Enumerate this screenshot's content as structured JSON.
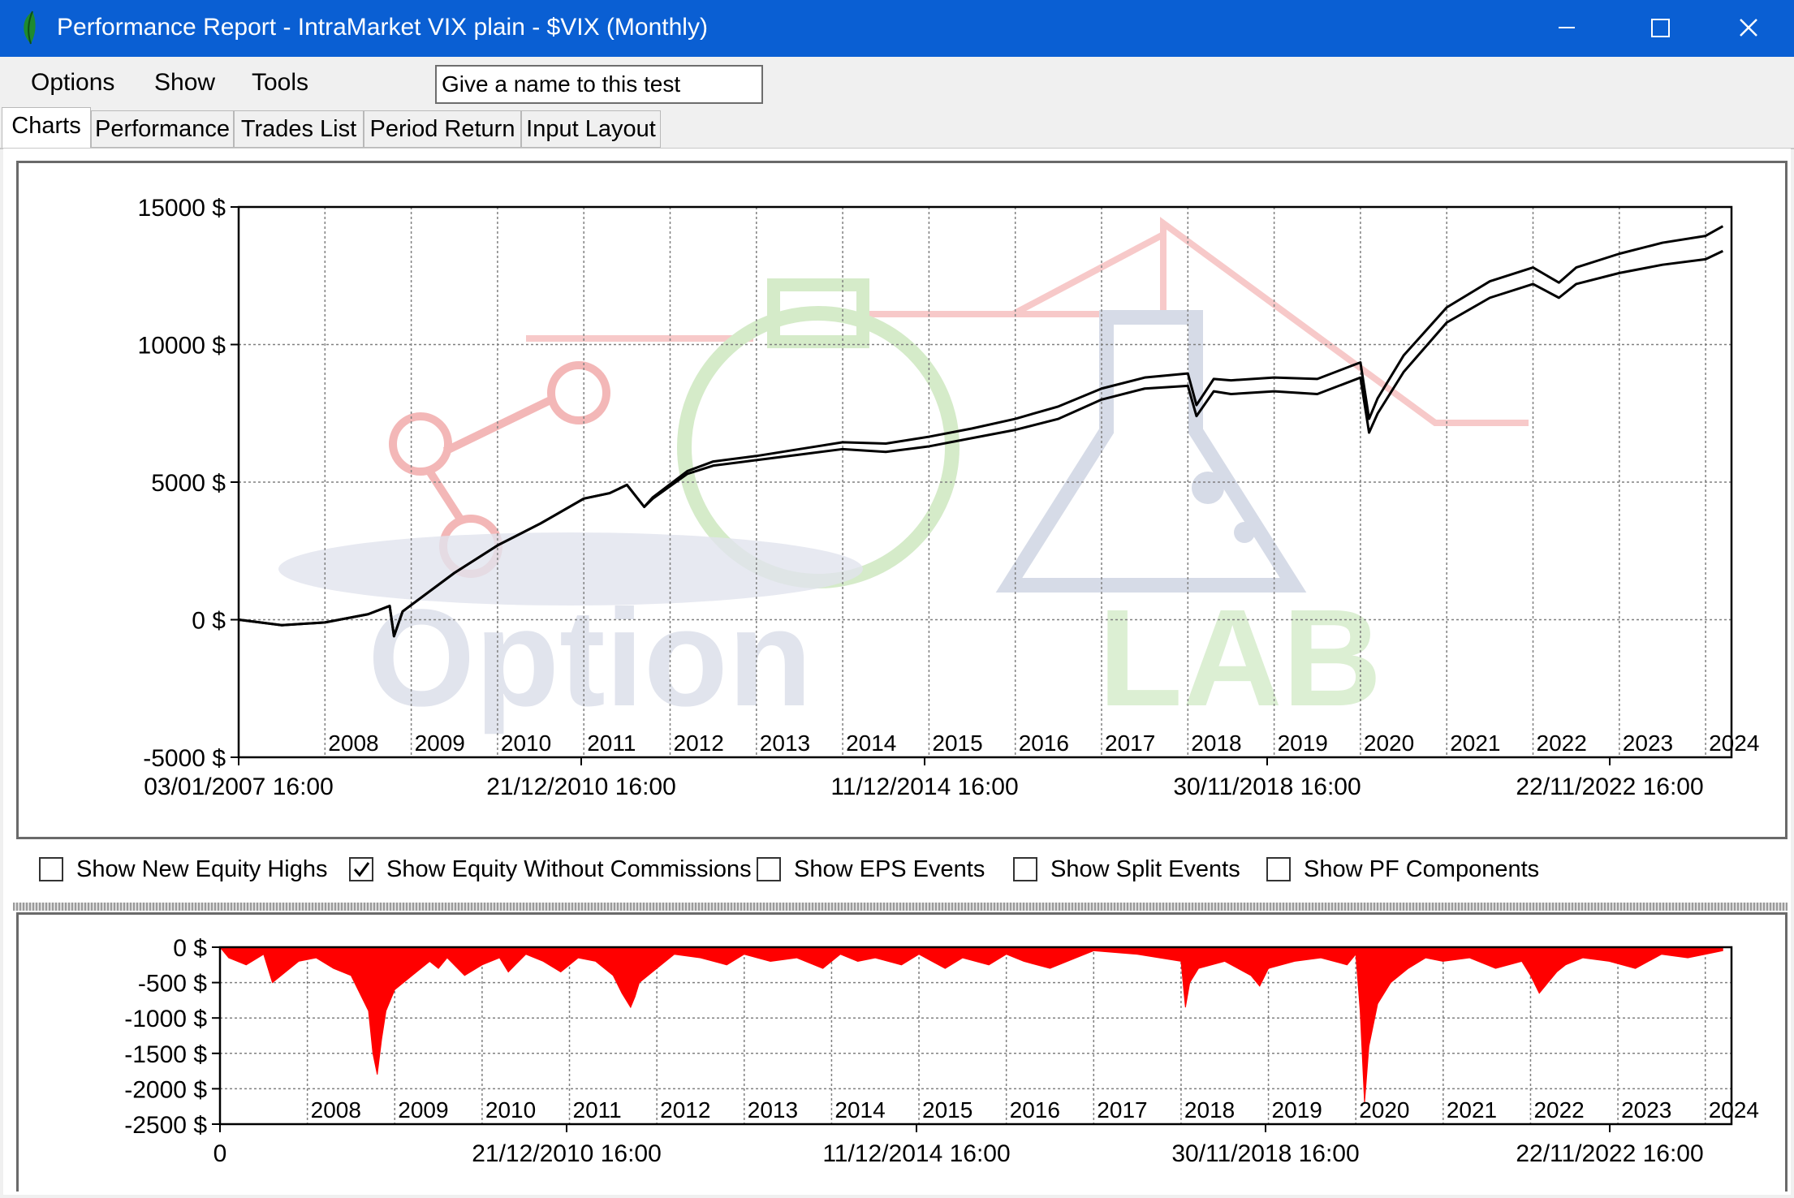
{
  "window": {
    "title": "Performance Report - IntraMarket VIX plain - $VIX (Monthly)",
    "minimize_icon": "minimize-icon",
    "maximize_icon": "maximize-icon",
    "close_icon": "close-icon",
    "app_icon": "leaf-icon"
  },
  "menu": {
    "options": "Options",
    "show": "Show",
    "tools": "Tools"
  },
  "test_name": {
    "value": "",
    "placeholder": "Give a name to this test"
  },
  "tabs": [
    {
      "label": "Charts",
      "active": true
    },
    {
      "label": "Performance",
      "active": false
    },
    {
      "label": "Trades List",
      "active": false
    },
    {
      "label": "Period Return",
      "active": false
    },
    {
      "label": "Input Layout",
      "active": false
    }
  ],
  "options": [
    {
      "label": "Show New Equity Highs",
      "checked": false
    },
    {
      "label": "Show Equity Without Commissions",
      "checked": true
    },
    {
      "label": "Show EPS Events",
      "checked": false
    },
    {
      "label": "Show Split Events",
      "checked": false
    },
    {
      "label": "Show PF Components",
      "checked": false
    }
  ],
  "watermark": {
    "text_option": "Option",
    "text_lab": "LAB"
  },
  "colors": {
    "titlebar": "#0a5fd3",
    "equity": "#000000",
    "drawdown": "#ff0000",
    "grid": "#808080"
  },
  "chart_data": [
    {
      "type": "line",
      "title": "",
      "ylabel": "",
      "ylim": [
        -5000,
        15000
      ],
      "y_ticks": [
        "15000 $",
        "10000 $",
        "5000 $",
        "0 $",
        "-5000 $"
      ],
      "y_tick_values": [
        15000,
        10000,
        5000,
        0,
        -5000
      ],
      "year_labels": [
        "2008",
        "2009",
        "2010",
        "2011",
        "2012",
        "2013",
        "2014",
        "2015",
        "2016",
        "2017",
        "2018",
        "2019",
        "2020",
        "2021",
        "2022",
        "2023",
        "2024"
      ],
      "date_labels": [
        "03/01/2007 16:00",
        "21/12/2010 16:00",
        "11/12/2014 16:00",
        "30/11/2018 16:00",
        "22/11/2022 16:00"
      ],
      "grid": true,
      "series": [
        {
          "x": [
            2007.0,
            2007.5,
            2008.0,
            2008.5,
            2008.75,
            2008.8,
            2008.9,
            2009.2,
            2009.5,
            2010.0,
            2010.5,
            2011.0,
            2011.3,
            2011.5,
            2011.7,
            2011.8,
            2012.2,
            2012.5,
            2013.0,
            2013.5,
            2014.0,
            2014.5,
            2015.0,
            2015.5,
            2016.0,
            2016.5,
            2017.0,
            2017.5,
            2018.0,
            2018.1,
            2018.3,
            2018.5,
            2019.0,
            2019.5,
            2020.0,
            2020.1,
            2020.2,
            2020.5,
            2021.0,
            2021.5,
            2022.0,
            2022.3,
            2022.5,
            2023.0,
            2023.5,
            2024.0,
            2024.2
          ],
          "values": [
            0,
            -200,
            -100,
            200,
            500,
            -600,
            300,
            1000,
            1700,
            2700,
            3500,
            4400,
            4600,
            4900,
            4100,
            4400,
            5300,
            5600,
            5800,
            6000,
            6200,
            6100,
            6300,
            6600,
            6900,
            7300,
            8000,
            8400,
            8500,
            7400,
            8300,
            8200,
            8300,
            8200,
            8800,
            6800,
            7500,
            9000,
            10800,
            11700,
            12200,
            11700,
            12200,
            12600,
            12900,
            13100,
            13400
          ]
        },
        {
          "x": [
            2007.0,
            2007.5,
            2008.0,
            2008.5,
            2008.75,
            2008.8,
            2008.9,
            2009.2,
            2009.5,
            2010.0,
            2010.5,
            2011.0,
            2011.3,
            2011.5,
            2011.7,
            2011.8,
            2012.2,
            2012.5,
            2013.0,
            2013.5,
            2014.0,
            2014.5,
            2015.0,
            2015.5,
            2016.0,
            2016.5,
            2017.0,
            2017.5,
            2018.0,
            2018.1,
            2018.3,
            2018.5,
            2019.0,
            2019.5,
            2020.0,
            2020.1,
            2020.2,
            2020.5,
            2021.0,
            2021.5,
            2022.0,
            2022.3,
            2022.5,
            2023.0,
            2023.5,
            2024.0,
            2024.2
          ],
          "values": [
            0,
            -200,
            -100,
            200,
            500,
            -600,
            300,
            1000,
            1700,
            2700,
            3500,
            4400,
            4600,
            4900,
            4100,
            4450,
            5400,
            5750,
            5950,
            6200,
            6450,
            6400,
            6650,
            6950,
            7300,
            7750,
            8400,
            8800,
            8950,
            7800,
            8750,
            8700,
            8800,
            8750,
            9350,
            7300,
            8050,
            9600,
            11350,
            12300,
            12800,
            12250,
            12800,
            13300,
            13700,
            13950,
            14300
          ]
        }
      ]
    },
    {
      "type": "area",
      "title": "",
      "ylim": [
        -2500,
        0
      ],
      "y_ticks": [
        "0 $",
        "-500 $",
        "-1000 $",
        "-1500 $",
        "-2000 $",
        "-2500 $"
      ],
      "y_tick_values": [
        0,
        -500,
        -1000,
        -1500,
        -2000,
        -2500
      ],
      "year_labels": [
        "2008",
        "2009",
        "2010",
        "2011",
        "2012",
        "2013",
        "2014",
        "2015",
        "2016",
        "2017",
        "2018",
        "2019",
        "2020",
        "2021",
        "2022",
        "2023",
        "2024"
      ],
      "date_labels": [
        "0",
        "21/12/2010 16:00",
        "11/12/2014 16:00",
        "30/11/2018 16:00",
        "22/11/2022 16:00"
      ],
      "grid": true,
      "series": [
        {
          "name": "",
          "x": [
            2007.0,
            2007.1,
            2007.3,
            2007.5,
            2007.6,
            2007.9,
            2008.1,
            2008.3,
            2008.5,
            2008.7,
            2008.75,
            2008.8,
            2008.85,
            2008.9,
            2009.0,
            2009.2,
            2009.4,
            2009.5,
            2009.6,
            2009.8,
            2010.0,
            2010.2,
            2010.3,
            2010.5,
            2010.7,
            2010.9,
            2011.1,
            2011.3,
            2011.5,
            2011.6,
            2011.7,
            2011.75,
            2011.8,
            2012.0,
            2012.2,
            2012.5,
            2012.8,
            2013.0,
            2013.3,
            2013.6,
            2013.9,
            2014.1,
            2014.3,
            2014.5,
            2014.8,
            2015.0,
            2015.3,
            2015.5,
            2015.8,
            2016.0,
            2016.2,
            2016.5,
            2016.8,
            2017.0,
            2017.5,
            2018.0,
            2018.05,
            2018.1,
            2018.2,
            2018.5,
            2018.8,
            2018.9,
            2019.0,
            2019.3,
            2019.6,
            2019.9,
            2020.0,
            2020.05,
            2020.1,
            2020.15,
            2020.25,
            2020.4,
            2020.6,
            2020.8,
            2021.0,
            2021.3,
            2021.6,
            2021.9,
            2022.0,
            2022.1,
            2022.3,
            2022.4,
            2022.6,
            2022.9,
            2023.2,
            2023.5,
            2023.8,
            2024.0,
            2024.2
          ],
          "values": [
            0,
            -150,
            -250,
            -100,
            -500,
            -200,
            -150,
            -300,
            -400,
            -900,
            -1500,
            -1800,
            -1300,
            -900,
            -600,
            -400,
            -200,
            -300,
            -150,
            -400,
            -250,
            -150,
            -350,
            -100,
            -200,
            -350,
            -150,
            -200,
            -400,
            -650,
            -850,
            -700,
            -500,
            -300,
            -100,
            -150,
            -250,
            -100,
            -200,
            -150,
            -300,
            -100,
            -200,
            -150,
            -250,
            -100,
            -300,
            -150,
            -250,
            -100,
            -200,
            -300,
            -150,
            -50,
            -100,
            -200,
            -850,
            -500,
            -300,
            -200,
            -400,
            -550,
            -300,
            -200,
            -150,
            -250,
            -100,
            -900,
            -2200,
            -1400,
            -800,
            -500,
            -300,
            -150,
            -200,
            -150,
            -300,
            -200,
            -400,
            -650,
            -350,
            -250,
            -150,
            -200,
            -300,
            -100,
            -150,
            -100,
            -50
          ]
        }
      ]
    }
  ]
}
